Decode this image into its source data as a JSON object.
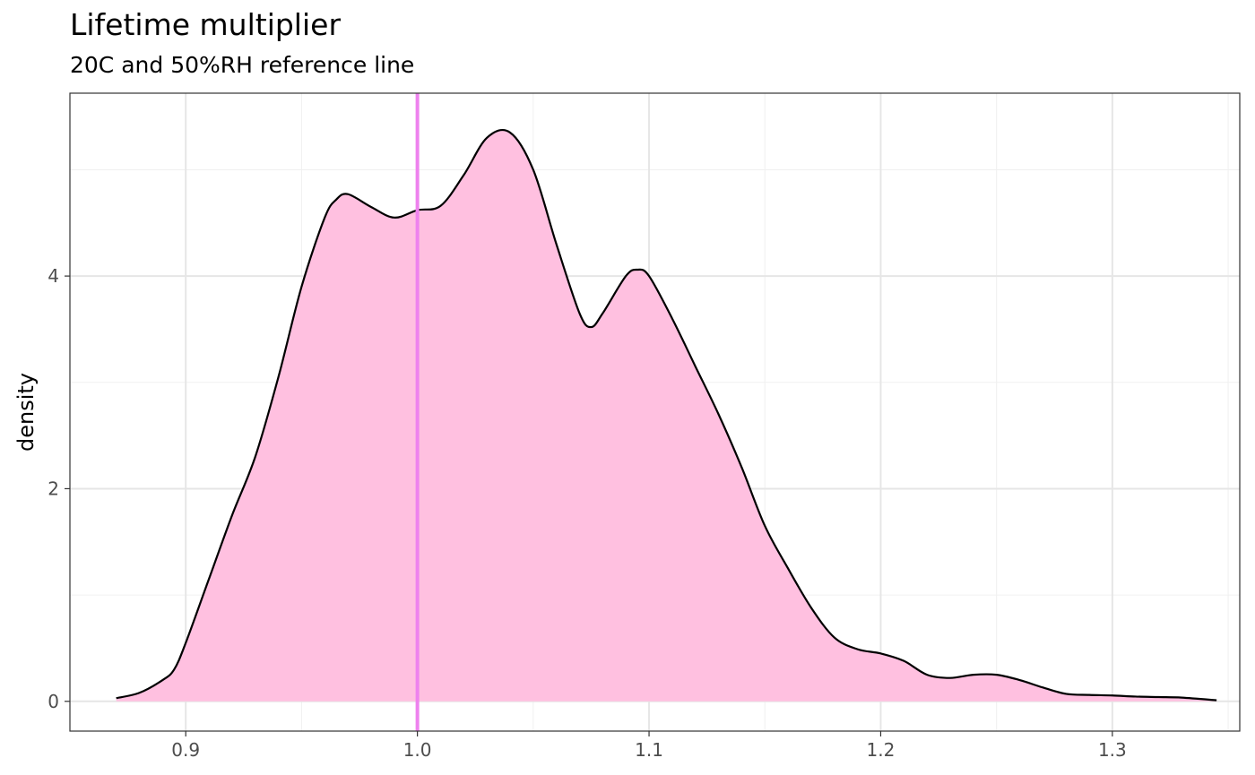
{
  "chart_data": {
    "type": "area",
    "title": "Lifetime multiplier",
    "subtitle": "20C and 50%RH reference line",
    "xlabel": "",
    "ylabel": "density",
    "xlim": [
      0.85,
      1.355
    ],
    "ylim": [
      -0.28,
      5.72
    ],
    "x_ticks": [
      0.9,
      1.0,
      1.1,
      1.2,
      1.3
    ],
    "x_tick_labels": [
      "0.9",
      "1.0",
      "1.1",
      "1.2",
      "1.3"
    ],
    "x_minor_ticks": [
      0.85,
      0.95,
      1.05,
      1.15,
      1.25,
      1.35
    ],
    "y_ticks": [
      0,
      2,
      4
    ],
    "y_tick_labels": [
      "0",
      "2",
      "4"
    ],
    "y_minor_ticks": [
      1,
      3,
      5
    ],
    "grid": true,
    "legend": "none",
    "reference_line": {
      "x": 1.0,
      "color": "#EE82EE"
    },
    "fill_color": "#FFC0E0",
    "line_color": "#000000",
    "series": [
      {
        "x": [
          0.87,
          0.88,
          0.89,
          0.895,
          0.9,
          0.91,
          0.92,
          0.93,
          0.94,
          0.95,
          0.96,
          0.965,
          0.97,
          0.98,
          0.99,
          1.0,
          1.01,
          1.02,
          1.03,
          1.04,
          1.05,
          1.06,
          1.07,
          1.075,
          1.08,
          1.09,
          1.095,
          1.1,
          1.11,
          1.12,
          1.13,
          1.14,
          1.15,
          1.16,
          1.17,
          1.18,
          1.19,
          1.2,
          1.21,
          1.22,
          1.23,
          1.24,
          1.25,
          1.26,
          1.27,
          1.28,
          1.29,
          1.3,
          1.31,
          1.32,
          1.33,
          1.345
        ],
        "y": [
          0.03,
          0.08,
          0.2,
          0.3,
          0.55,
          1.15,
          1.75,
          2.3,
          3.05,
          3.9,
          4.55,
          4.72,
          4.77,
          4.65,
          4.55,
          4.62,
          4.66,
          4.95,
          5.3,
          5.35,
          5.0,
          4.3,
          3.65,
          3.52,
          3.65,
          4.0,
          4.06,
          4.0,
          3.6,
          3.15,
          2.7,
          2.2,
          1.65,
          1.25,
          0.88,
          0.6,
          0.49,
          0.45,
          0.38,
          0.25,
          0.22,
          0.25,
          0.25,
          0.2,
          0.13,
          0.07,
          0.06,
          0.055,
          0.045,
          0.04,
          0.035,
          0.01
        ]
      }
    ]
  }
}
